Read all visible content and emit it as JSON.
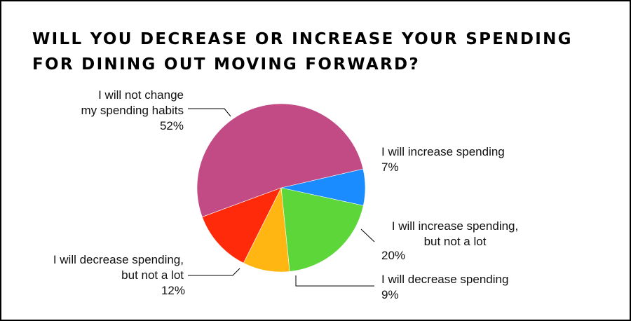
{
  "chart_data": {
    "type": "pie",
    "title_lines": [
      "WILL YOU DECREASE OR INCREASE YOUR SPENDING",
      "FOR DINING OUT MOVING FORWARD?"
    ],
    "slices": [
      {
        "label_lines": [
          "I will not change",
          "my spending habits"
        ],
        "value": 52,
        "value_label": "52%",
        "color": "#C24B86"
      },
      {
        "label_lines": [
          "I will increase spending"
        ],
        "value": 7,
        "value_label": "7%",
        "color": "#1A8CFF"
      },
      {
        "label_lines": [
          "I will increase spending,",
          "but not a lot"
        ],
        "value": 20,
        "value_label": "20%",
        "color": "#5DD63A"
      },
      {
        "label_lines": [
          "I will decrease spending"
        ],
        "value": 9,
        "value_label": "9%",
        "color": "#FFB612"
      },
      {
        "label_lines": [
          "I will decrease spending,",
          "but not a lot"
        ],
        "value": 12,
        "value_label": "12%",
        "color": "#FF2A0A"
      }
    ],
    "label_color": "#111111",
    "leader_color": "#000000"
  }
}
